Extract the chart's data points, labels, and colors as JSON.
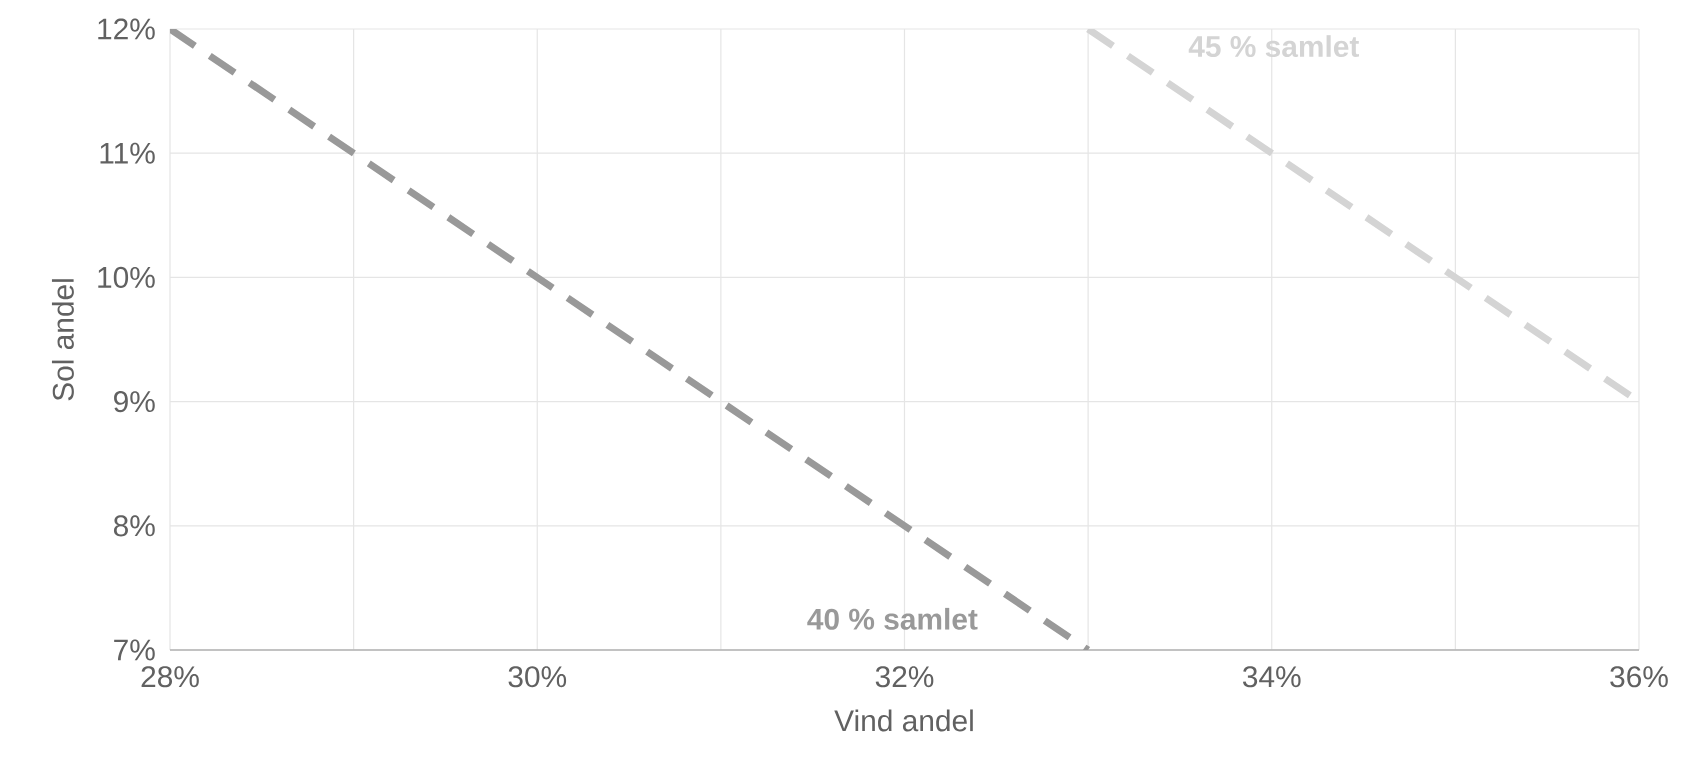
{
  "chart_data": {
    "type": "line",
    "xlabel": "Vind andel",
    "ylabel": "Sol andel",
    "series": [
      {
        "name": "40 % samlet",
        "color": "#999999",
        "x": [
          28,
          33
        ],
        "values": [
          12,
          7
        ]
      },
      {
        "name": "45 % samlet",
        "color": "#d4d4d4",
        "x": [
          33,
          36
        ],
        "values": [
          12,
          9
        ]
      }
    ],
    "xlim": [
      28,
      36
    ],
    "xticks": [
      {
        "value": 28,
        "label": "28%"
      },
      {
        "value": 29,
        "label": null
      },
      {
        "value": 30,
        "label": "30%"
      },
      {
        "value": 31,
        "label": null
      },
      {
        "value": 32,
        "label": "32%"
      },
      {
        "value": 33,
        "label": null
      },
      {
        "value": 34,
        "label": "34%"
      },
      {
        "value": 35,
        "label": null
      },
      {
        "value": 36,
        "label": "36%"
      }
    ],
    "ylim": [
      7,
      12
    ],
    "yticks": [
      {
        "value": 7,
        "label": "7%"
      },
      {
        "value": 8,
        "label": "8%"
      },
      {
        "value": 9,
        "label": "9%"
      },
      {
        "value": 10,
        "label": "10%"
      },
      {
        "value": 11,
        "label": "11%"
      },
      {
        "value": 12,
        "label": "12%"
      }
    ],
    "grid": true,
    "marker": "none",
    "line_style": "dashed"
  }
}
